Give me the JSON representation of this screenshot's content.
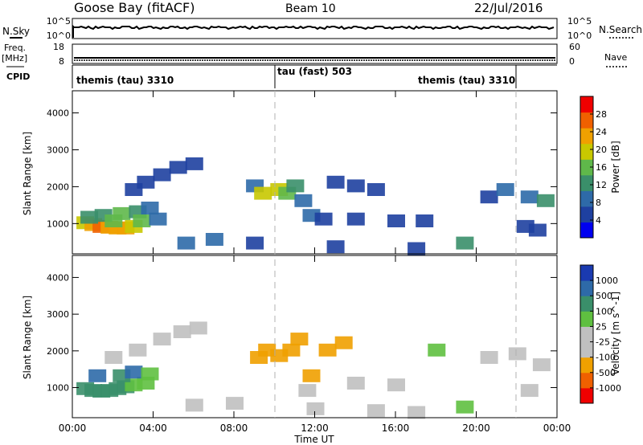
{
  "header": {
    "station": "Goose Bay (fitACF)",
    "beam": "Beam 10",
    "date": "22/Jul/2016"
  },
  "strips": {
    "nsky_label": "N.Sky",
    "nsky_ticks": [
      "10^5",
      "10^0"
    ],
    "nsearch_label": "N.Search",
    "nsearch_ticks": [
      "10^5",
      "10^0"
    ],
    "freq_label": "Freq.",
    "freq_unit": "[MHz]",
    "freq_ticks": [
      "18",
      "8"
    ],
    "nave_label": "Nave",
    "nave_ticks": [
      "60",
      "0"
    ],
    "cpid_label": "CPID",
    "cpid_segments": [
      "themis (tau) 3310",
      "tau (fast) 503",
      "themis (tau) 3310"
    ]
  },
  "colors": {
    "power_scale": [
      "#0000f0",
      "#1e40a0",
      "#2e6aa8",
      "#3a8f6a",
      "#5fb84a",
      "#c8c800",
      "#f0a000",
      "#f06000",
      "#f00000"
    ],
    "velocity_scale": [
      "#f00000",
      "#f06000",
      "#f0a000",
      "#c0c0c0",
      "#c0c0c0",
      "#5fc040",
      "#3a8f6a",
      "#2e6aa8",
      "#1a3ab0"
    ]
  },
  "chart_data": [
    {
      "type": "heatmap",
      "panel": "power",
      "xlabel": "",
      "ylabel": "Slant Range [km]",
      "yticks": [
        "1000",
        "2000",
        "3000",
        "4000"
      ],
      "ylim": [
        180,
        4600
      ],
      "xlim_hours": [
        0,
        24
      ],
      "colorbar_label": "Power [dB]",
      "colorbar_ticks": [
        "4",
        "8",
        "12",
        "16",
        "20",
        "24",
        "28"
      ],
      "cells": [
        [
          0.6,
          1000,
          20
        ],
        [
          1.0,
          950,
          26
        ],
        [
          1.4,
          900,
          28
        ],
        [
          1.8,
          880,
          27
        ],
        [
          2.2,
          860,
          26
        ],
        [
          2.6,
          860,
          24
        ],
        [
          3.0,
          900,
          22
        ],
        [
          0.8,
          1150,
          12
        ],
        [
          1.5,
          1200,
          14
        ],
        [
          2.4,
          1250,
          16
        ],
        [
          3.2,
          1300,
          14
        ],
        [
          3.8,
          1400,
          10
        ],
        [
          2.0,
          1050,
          18
        ],
        [
          3.4,
          1050,
          16
        ],
        [
          4.2,
          1100,
          8
        ],
        [
          3.0,
          1900,
          6
        ],
        [
          3.6,
          2100,
          6
        ],
        [
          4.4,
          2300,
          5
        ],
        [
          5.2,
          2500,
          5
        ],
        [
          6.0,
          2600,
          4
        ],
        [
          9.0,
          2000,
          8
        ],
        [
          9.4,
          1800,
          20
        ],
        [
          10.2,
          1900,
          22
        ],
        [
          10.6,
          1800,
          18
        ],
        [
          11.0,
          2000,
          12
        ],
        [
          11.4,
          1600,
          10
        ],
        [
          11.8,
          1200,
          10
        ],
        [
          12.4,
          1100,
          6
        ],
        [
          14.0,
          1100,
          5
        ],
        [
          16.0,
          1050,
          4
        ],
        [
          17.4,
          1050,
          4
        ],
        [
          13.0,
          2100,
          6
        ],
        [
          14.0,
          2000,
          5
        ],
        [
          15.0,
          1900,
          4
        ],
        [
          20.6,
          1700,
          6
        ],
        [
          21.4,
          1900,
          8
        ],
        [
          22.6,
          1700,
          10
        ],
        [
          23.4,
          1600,
          12
        ],
        [
          22.4,
          900,
          6
        ],
        [
          23.0,
          800,
          6
        ],
        [
          19.4,
          450,
          12
        ],
        [
          5.6,
          450,
          10
        ],
        [
          7.0,
          550,
          8
        ],
        [
          9.0,
          450,
          6
        ],
        [
          13.0,
          350,
          4
        ],
        [
          17.0,
          300,
          5
        ]
      ]
    },
    {
      "type": "heatmap",
      "panel": "velocity",
      "xlabel": "Time UT",
      "ylabel": "Slant Range [km]",
      "yticks": [
        "1000",
        "2000",
        "3000",
        "4000"
      ],
      "ylim": [
        180,
        4600
      ],
      "xticks": [
        "00:00",
        "04:00",
        "08:00",
        "12:00",
        "16:00",
        "20:00",
        "00:00"
      ],
      "xlim_hours": [
        0,
        24
      ],
      "colorbar_label": "Velocity [m s^-1]",
      "colorbar_ticks": [
        "-1000",
        "-500",
        "-100",
        "-25",
        "25",
        "100",
        "500",
        "1000"
      ],
      "cells": [
        [
          0.6,
          950,
          300
        ],
        [
          1.0,
          900,
          400
        ],
        [
          1.4,
          880,
          350
        ],
        [
          1.8,
          900,
          300
        ],
        [
          2.2,
          950,
          200
        ],
        [
          2.6,
          1000,
          150
        ],
        [
          3.0,
          1050,
          80
        ],
        [
          3.6,
          1100,
          60
        ],
        [
          1.2,
          1300,
          600
        ],
        [
          2.4,
          1300,
          500
        ],
        [
          3.0,
          1400,
          700
        ],
        [
          3.8,
          1350,
          40
        ],
        [
          2.0,
          1800,
          0
        ],
        [
          3.2,
          2000,
          0
        ],
        [
          4.4,
          2300,
          0
        ],
        [
          5.4,
          2500,
          0
        ],
        [
          6.2,
          2600,
          0
        ],
        [
          9.2,
          1800,
          -150
        ],
        [
          9.6,
          2000,
          -300
        ],
        [
          10.2,
          1850,
          -400
        ],
        [
          10.8,
          2000,
          -200
        ],
        [
          11.2,
          2300,
          -250
        ],
        [
          11.8,
          1300,
          -120
        ],
        [
          11.6,
          900,
          -60
        ],
        [
          12.6,
          2000,
          -300
        ],
        [
          13.4,
          2200,
          -200
        ],
        [
          14.0,
          1100,
          0
        ],
        [
          16.0,
          1050,
          0
        ],
        [
          18.0,
          2000,
          60
        ],
        [
          20.6,
          1800,
          0
        ],
        [
          22.0,
          1900,
          0
        ],
        [
          23.2,
          1600,
          0
        ],
        [
          22.6,
          900,
          0
        ],
        [
          19.4,
          450,
          80
        ],
        [
          6.0,
          500,
          0
        ],
        [
          8.0,
          550,
          0
        ],
        [
          12.0,
          400,
          0
        ],
        [
          15.0,
          350,
          0
        ],
        [
          17.0,
          300,
          0
        ]
      ]
    }
  ]
}
